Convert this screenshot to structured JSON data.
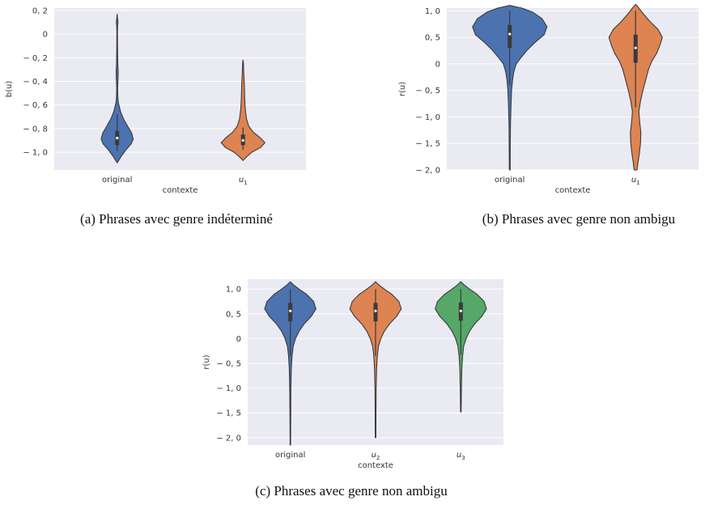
{
  "chart_data": [
    {
      "id": "a",
      "type": "violin",
      "caption": "(a) Phrases avec genre indéterminé",
      "xlabel": "contexte",
      "ylabel": "b(u)",
      "ylim": [
        -1.15,
        0.22
      ],
      "yticks": [
        0.2,
        0,
        -0.2,
        -0.4,
        -0.6,
        -0.8,
        -1.0
      ],
      "ytick_labels": [
        "0, 2",
        "0",
        "− 0, 2",
        "− 0, 4",
        "− 0, 6",
        "− 0, 8",
        "− 1, 0"
      ],
      "grid": true,
      "categories": [
        {
          "name": "original",
          "color": "#4c72b0",
          "q1": -0.94,
          "median": -0.88,
          "q3": -0.82,
          "wlow": -0.99,
          "whigh": -0.68,
          "profile": [
            [
              0.17,
              0
            ],
            [
              0.14,
              0.01
            ],
            [
              0.1,
              0.03
            ],
            [
              0.07,
              0.015
            ],
            [
              0.02,
              0.01
            ],
            [
              -0.1,
              0.012
            ],
            [
              -0.25,
              0.02
            ],
            [
              -0.32,
              0.035
            ],
            [
              -0.38,
              0.03
            ],
            [
              -0.45,
              0.015
            ],
            [
              -0.52,
              0.02
            ],
            [
              -0.58,
              0.04
            ],
            [
              -0.66,
              0.12
            ],
            [
              -0.72,
              0.22
            ],
            [
              -0.78,
              0.36
            ],
            [
              -0.84,
              0.5
            ],
            [
              -0.89,
              0.55
            ],
            [
              -0.93,
              0.48
            ],
            [
              -0.98,
              0.3
            ],
            [
              -1.03,
              0.15
            ],
            [
              -1.07,
              0.05
            ],
            [
              -1.09,
              0
            ]
          ]
        },
        {
          "name": "u1",
          "color": "#dd8452",
          "q1": -0.94,
          "median": -0.9,
          "q3": -0.85,
          "wlow": -0.98,
          "whigh": -0.79,
          "profile": [
            [
              -0.22,
              0
            ],
            [
              -0.25,
              0.015
            ],
            [
              -0.32,
              0.025
            ],
            [
              -0.4,
              0.04
            ],
            [
              -0.48,
              0.05
            ],
            [
              -0.56,
              0.06
            ],
            [
              -0.64,
              0.08
            ],
            [
              -0.72,
              0.12
            ],
            [
              -0.78,
              0.2
            ],
            [
              -0.83,
              0.35
            ],
            [
              -0.88,
              0.6
            ],
            [
              -0.92,
              0.75
            ],
            [
              -0.96,
              0.6
            ],
            [
              -1.0,
              0.3
            ],
            [
              -1.04,
              0.12
            ],
            [
              -1.07,
              0
            ]
          ]
        }
      ]
    },
    {
      "id": "b",
      "type": "violin",
      "caption": "(b) Phrases avec genre non ambigu",
      "xlabel": "contexte",
      "ylabel": "r(u)",
      "ylim": [
        -2.0,
        1.05
      ],
      "yticks": [
        1.0,
        0.5,
        0,
        -0.5,
        -1.0,
        -1.5,
        -2.0
      ],
      "ytick_labels": [
        "1, 0",
        "0, 5",
        "0",
        "− 0, 5",
        "− 1, 0",
        "− 1, 5",
        "− 2, 0"
      ],
      "grid": true,
      "categories": [
        {
          "name": "original",
          "color": "#4c72b0",
          "q1": 0.3,
          "median": 0.56,
          "q3": 0.73,
          "wlow": -0.4,
          "whigh": 1.0,
          "profile": [
            [
              1.1,
              0
            ],
            [
              1.05,
              0.3
            ],
            [
              0.98,
              0.55
            ],
            [
              0.85,
              0.8
            ],
            [
              0.7,
              0.92
            ],
            [
              0.55,
              0.85
            ],
            [
              0.4,
              0.62
            ],
            [
              0.25,
              0.42
            ],
            [
              0.1,
              0.26
            ],
            [
              0.0,
              0.16
            ],
            [
              -0.15,
              0.1
            ],
            [
              -0.3,
              0.07
            ],
            [
              -0.5,
              0.045
            ],
            [
              -0.8,
              0.03
            ],
            [
              -1.2,
              0.018
            ],
            [
              -1.6,
              0.012
            ],
            [
              -2.0,
              0.01
            ]
          ]
        },
        {
          "name": "u1",
          "color": "#dd8452",
          "q1": 0.02,
          "median": 0.3,
          "q3": 0.55,
          "wlow": -0.82,
          "whigh": 1.0,
          "profile": [
            [
              1.12,
              0
            ],
            [
              1.05,
              0.08
            ],
            [
              0.95,
              0.18
            ],
            [
              0.8,
              0.35
            ],
            [
              0.65,
              0.55
            ],
            [
              0.5,
              0.66
            ],
            [
              0.35,
              0.6
            ],
            [
              0.2,
              0.52
            ],
            [
              0.05,
              0.4
            ],
            [
              -0.1,
              0.32
            ],
            [
              -0.3,
              0.25
            ],
            [
              -0.5,
              0.18
            ],
            [
              -0.7,
              0.12
            ],
            [
              -0.9,
              0.08
            ],
            [
              -1.1,
              0.1
            ],
            [
              -1.3,
              0.13
            ],
            [
              -1.5,
              0.12
            ],
            [
              -1.7,
              0.09
            ],
            [
              -1.85,
              0.06
            ],
            [
              -2.0,
              0.035
            ]
          ]
        }
      ]
    },
    {
      "id": "c",
      "type": "violin",
      "caption": "(c) Phrases avec genre non ambigu",
      "xlabel": "contexte",
      "ylabel": "r(u)",
      "ylim": [
        -2.15,
        1.2
      ],
      "yticks": [
        1.0,
        0.5,
        0,
        -0.5,
        -1.0,
        -1.5,
        -2.0
      ],
      "ytick_labels": [
        "1, 0",
        "0, 5",
        "0",
        "− 0, 5",
        "− 1, 0",
        "− 1, 5",
        "− 2, 0"
      ],
      "grid": true,
      "categories": [
        {
          "name": "original",
          "color": "#4c72b0",
          "q1": 0.35,
          "median": 0.56,
          "q3": 0.72,
          "wlow": -0.35,
          "whigh": 1.0,
          "profile": [
            [
              1.15,
              0
            ],
            [
              1.08,
              0.12
            ],
            [
              1.0,
              0.3
            ],
            [
              0.9,
              0.55
            ],
            [
              0.75,
              0.8
            ],
            [
              0.6,
              0.88
            ],
            [
              0.45,
              0.72
            ],
            [
              0.3,
              0.48
            ],
            [
              0.15,
              0.3
            ],
            [
              0.0,
              0.18
            ],
            [
              -0.15,
              0.1
            ],
            [
              -0.35,
              0.06
            ],
            [
              -0.6,
              0.035
            ],
            [
              -1.0,
              0.02
            ],
            [
              -1.5,
              0.014
            ],
            [
              -2.15,
              0.008
            ]
          ]
        },
        {
          "name": "u2",
          "color": "#dd8452",
          "q1": 0.35,
          "median": 0.56,
          "q3": 0.72,
          "wlow": -0.35,
          "whigh": 1.0,
          "profile": [
            [
              1.15,
              0
            ],
            [
              1.08,
              0.12
            ],
            [
              1.0,
              0.3
            ],
            [
              0.9,
              0.55
            ],
            [
              0.75,
              0.8
            ],
            [
              0.6,
              0.88
            ],
            [
              0.45,
              0.72
            ],
            [
              0.3,
              0.48
            ],
            [
              0.15,
              0.3
            ],
            [
              0.0,
              0.18
            ],
            [
              -0.15,
              0.1
            ],
            [
              -0.35,
              0.06
            ],
            [
              -0.6,
              0.035
            ],
            [
              -1.0,
              0.02
            ],
            [
              -1.5,
              0.014
            ],
            [
              -2.0,
              0.01
            ]
          ]
        },
        {
          "name": "u3",
          "color": "#55a868",
          "q1": 0.36,
          "median": 0.56,
          "q3": 0.73,
          "wlow": -0.33,
          "whigh": 1.0,
          "profile": [
            [
              1.15,
              0
            ],
            [
              1.08,
              0.12
            ],
            [
              1.0,
              0.3
            ],
            [
              0.9,
              0.55
            ],
            [
              0.75,
              0.8
            ],
            [
              0.6,
              0.88
            ],
            [
              0.45,
              0.72
            ],
            [
              0.3,
              0.48
            ],
            [
              0.15,
              0.3
            ],
            [
              0.0,
              0.18
            ],
            [
              -0.15,
              0.1
            ],
            [
              -0.35,
              0.06
            ],
            [
              -0.6,
              0.035
            ],
            [
              -1.0,
              0.02
            ],
            [
              -1.48,
              0.01
            ]
          ]
        }
      ]
    }
  ]
}
